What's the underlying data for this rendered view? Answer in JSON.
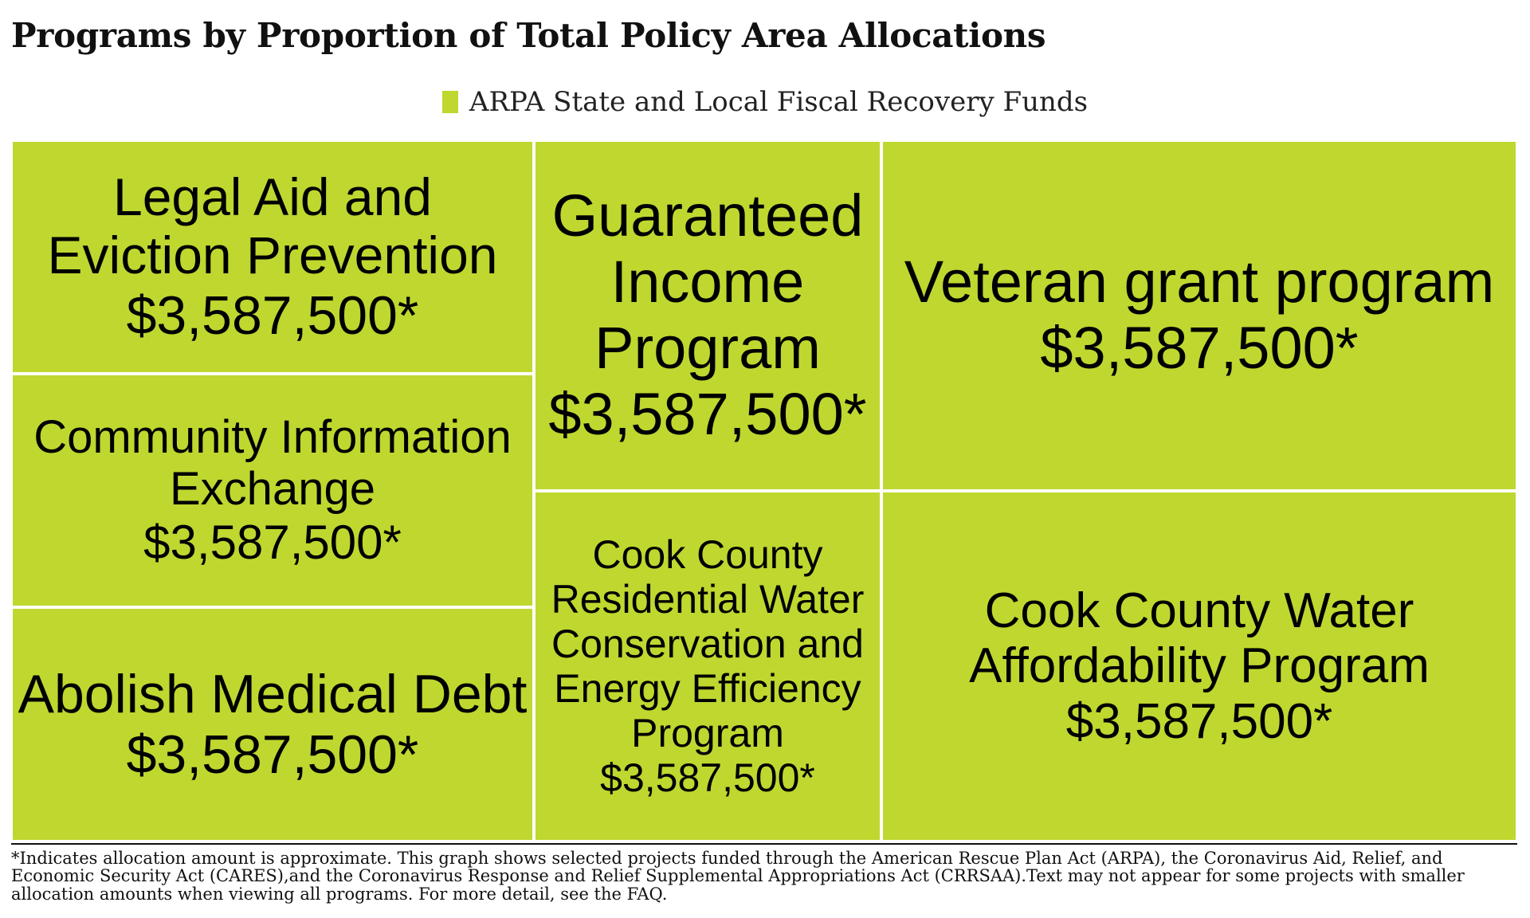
{
  "chart_data": {
    "type": "treemap",
    "title": "Programs by Proportion of Total Policy Area Allocations",
    "legend": [
      {
        "label": "ARPA State and Local Fiscal Recovery Funds",
        "color": "#c0d72f"
      }
    ],
    "legend_placement": "top-center",
    "items": [
      {
        "name": "Legal Aid and Eviction Prevention",
        "value": 3587500,
        "value_label": "$3,587,500*",
        "series": "ARPA State and Local Fiscal Recovery Funds"
      },
      {
        "name": "Community Information Exchange",
        "value": 3587500,
        "value_label": "$3,587,500*",
        "series": "ARPA State and Local Fiscal Recovery Funds"
      },
      {
        "name": "Abolish Medical Debt",
        "value": 3587500,
        "value_label": "$3,587,500*",
        "series": "ARPA State and Local Fiscal Recovery Funds"
      },
      {
        "name": "Guaranteed Income Program",
        "value": 3587500,
        "value_label": "$3,587,500*",
        "series": "ARPA State and Local Fiscal Recovery Funds"
      },
      {
        "name": "Veteran grant program",
        "value": 3587500,
        "value_label": "$3,587,500*",
        "series": "ARPA State and Local Fiscal Recovery Funds"
      },
      {
        "name": "Cook County Residential Water Conservation and Energy Efficiency Program",
        "value": 3587500,
        "value_label": "$3,587,500*",
        "series": "ARPA State and Local Fiscal Recovery Funds"
      },
      {
        "name": "Cook County Water Affordability Program",
        "value": 3587500,
        "value_label": "$3,587,500*",
        "series": "ARPA State and Local Fiscal Recovery Funds"
      }
    ]
  },
  "footnote": "*Indicates allocation amount is approximate. This graph shows selected projects funded through the American Rescue Plan Act (ARPA), the Coronavirus Aid, Relief, and Economic Security Act (CARES),and the Coronavirus Response and Relief Supplemental Appropriations Act (CRRSAA).Text may not appear for some projects with smaller allocation amounts when viewing all programs. For more detail, see the FAQ."
}
